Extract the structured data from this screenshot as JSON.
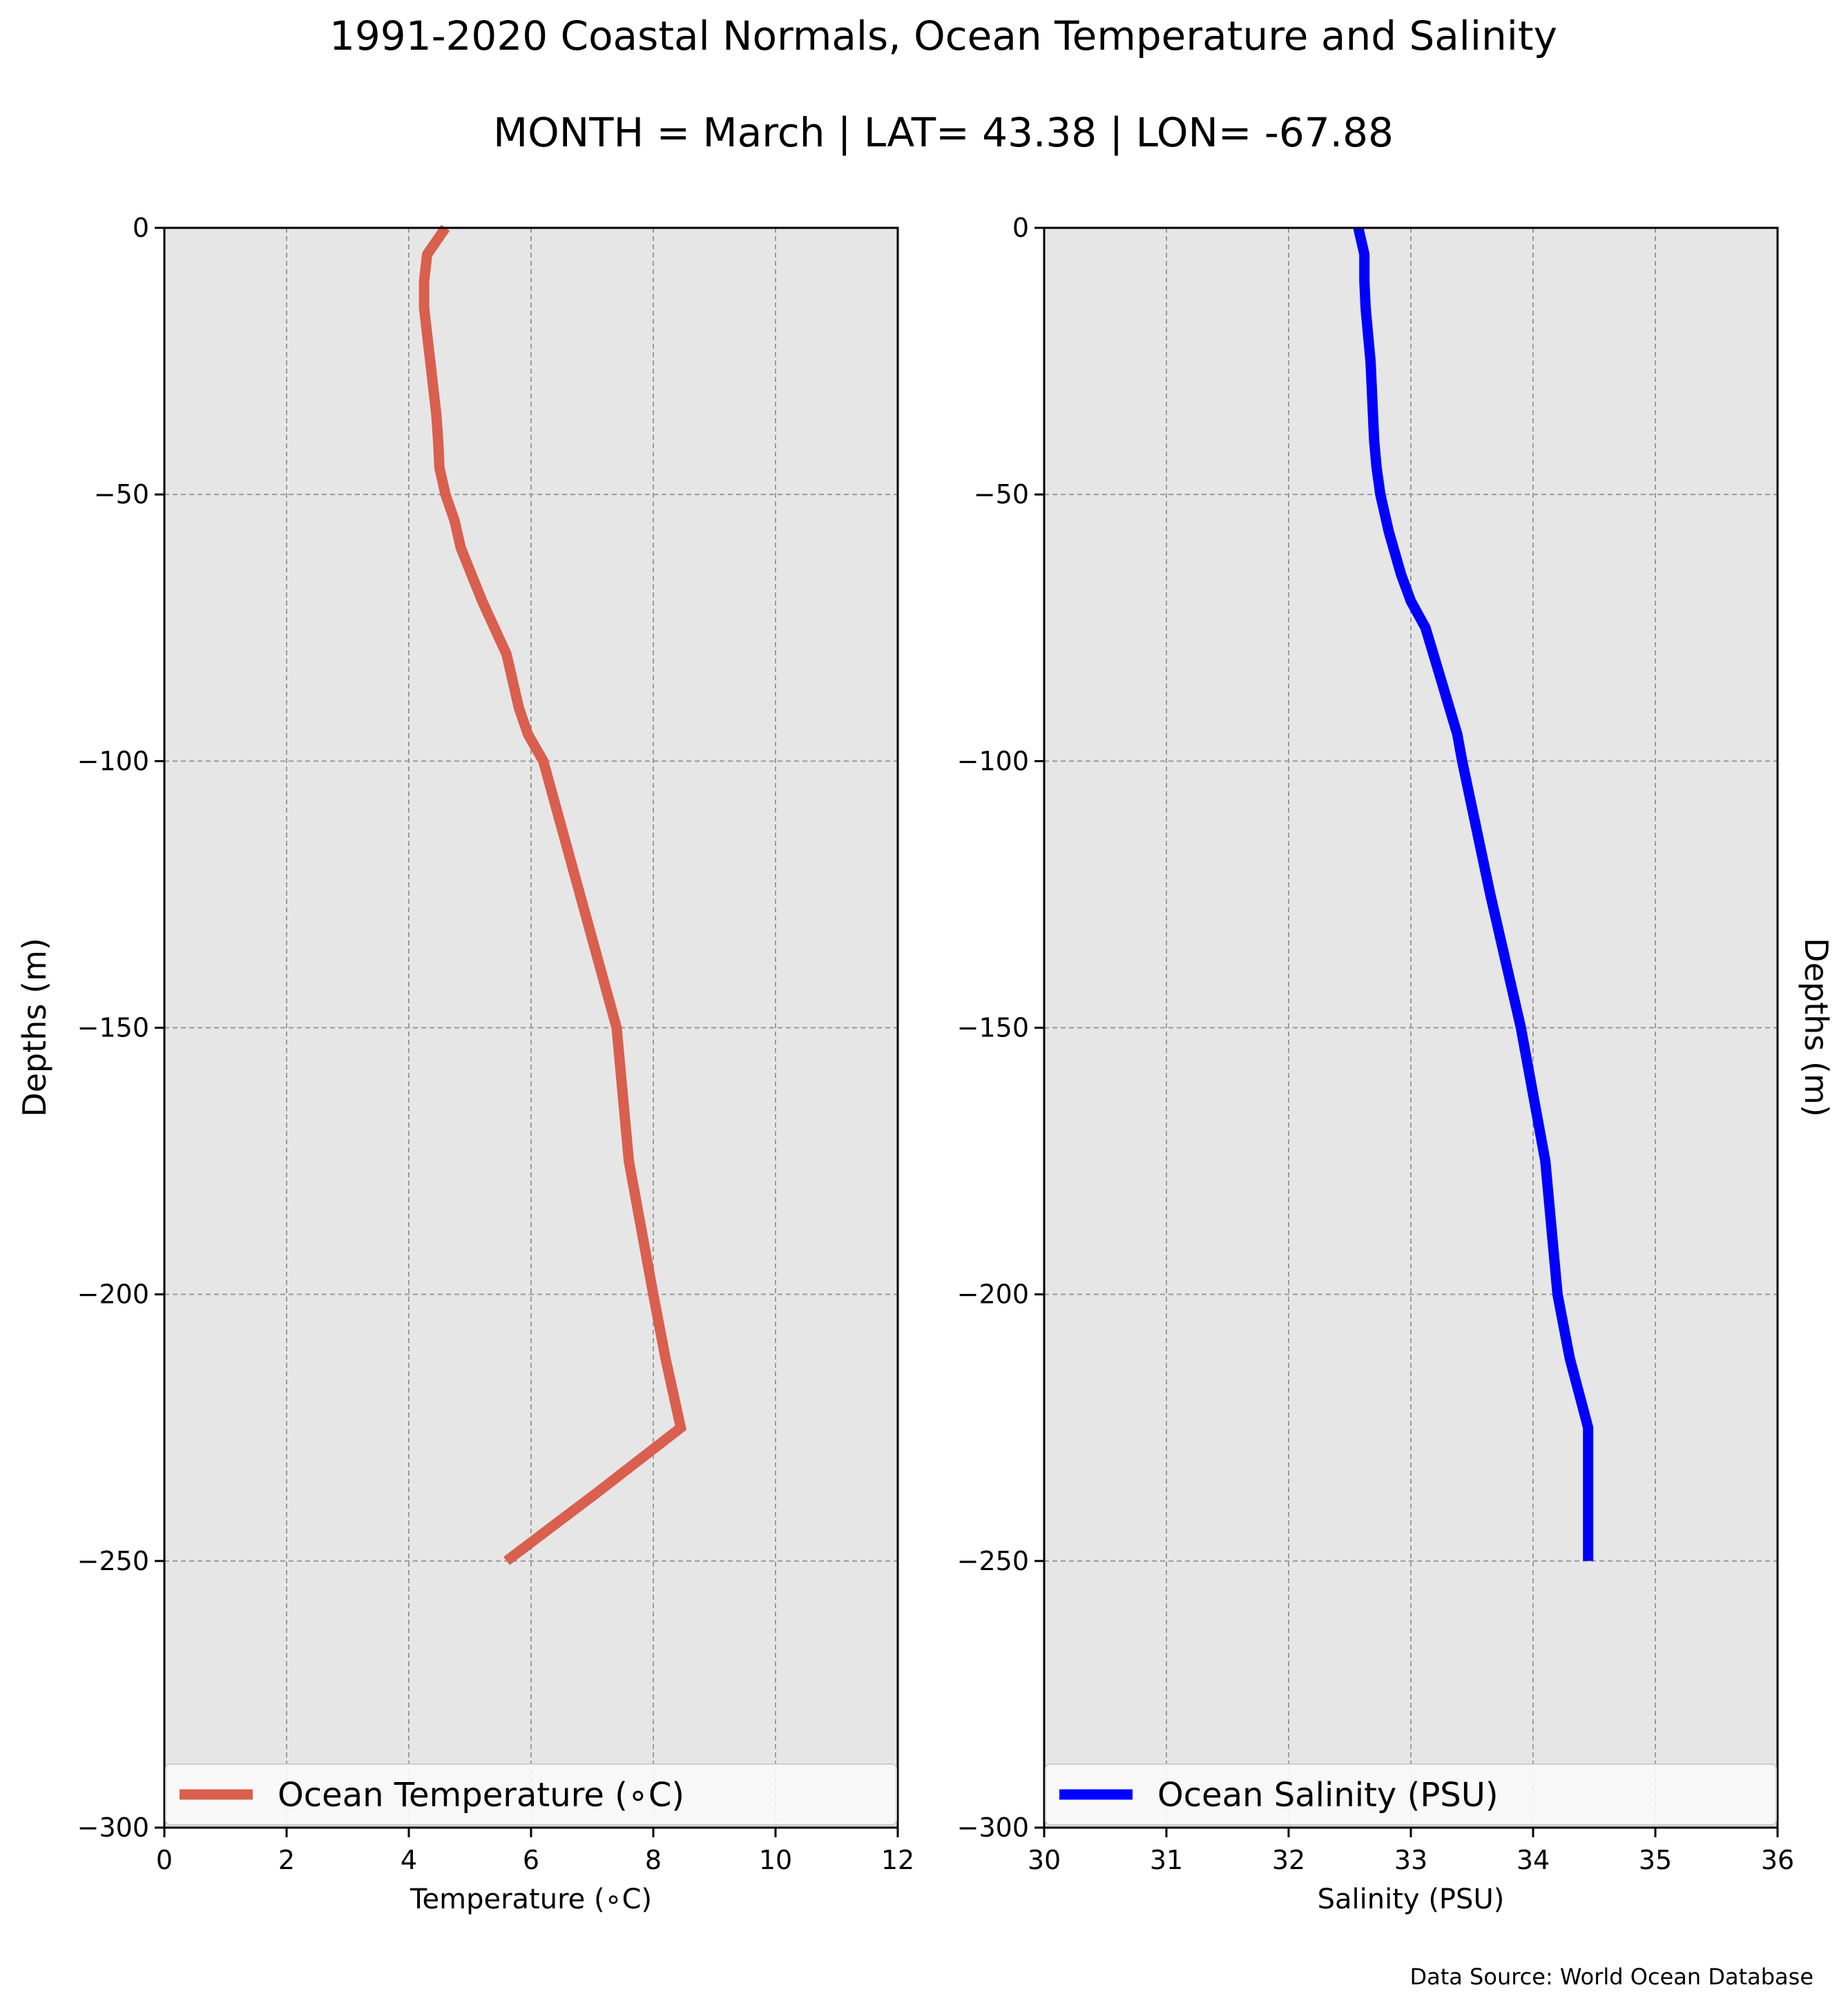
{
  "figure": {
    "title_line1": "1991-2020 Coastal Normals, Ocean Temperature and Salinity",
    "title_line2": "MONTH = March | LAT= 43.38 | LON= -67.88",
    "source": "Data Source: World Ocean Database"
  },
  "chart_data": [
    {
      "type": "line",
      "xlabel": "Temperature (∘C)",
      "ylabel": "Depths (m)",
      "xlim": [
        0,
        12
      ],
      "ylim": [
        -300,
        0
      ],
      "x_ticks": [
        0,
        2,
        4,
        6,
        8,
        10,
        12
      ],
      "y_ticks": [
        0,
        -50,
        -100,
        -150,
        -200,
        -250,
        -300
      ],
      "x_tick_labels": [
        "0",
        "2",
        "4",
        "6",
        "8",
        "10",
        "12"
      ],
      "y_tick_labels": [
        "0",
        "−50",
        "−100",
        "−150",
        "−200",
        "−250",
        "−300"
      ],
      "grid": true,
      "legend_position": "lower center",
      "series": [
        {
          "name": "Ocean Temperature (∘C)",
          "color": "#d95f4e",
          "x": [
            4.6,
            4.3,
            4.25,
            4.25,
            4.3,
            4.35,
            4.4,
            4.45,
            4.48,
            4.5,
            4.6,
            4.75,
            4.85,
            5.2,
            5.6,
            5.8,
            5.95,
            6.2,
            6.8,
            7.4,
            7.6,
            8.0,
            8.2,
            8.45,
            7.1,
            5.6
          ],
          "y": [
            0,
            -5,
            -10,
            -15,
            -20,
            -25,
            -30,
            -35,
            -40,
            -45,
            -50,
            -55,
            -60,
            -70,
            -80,
            -90,
            -95,
            -100,
            -125,
            -150,
            -175,
            -200,
            -212,
            -225,
            -237,
            -250
          ]
        }
      ]
    },
    {
      "type": "line",
      "xlabel": "Salinity (PSU)",
      "ylabel": "Depths (m)",
      "xlim": [
        30,
        36
      ],
      "ylim": [
        -300,
        0
      ],
      "x_ticks": [
        30,
        31,
        32,
        33,
        34,
        35,
        36
      ],
      "y_ticks": [
        0,
        -50,
        -100,
        -150,
        -200,
        -250,
        -300
      ],
      "x_tick_labels": [
        "30",
        "31",
        "32",
        "33",
        "34",
        "35",
        "36"
      ],
      "y_tick_labels": [
        "0",
        "−50",
        "−100",
        "−150",
        "−200",
        "−250",
        "−300"
      ],
      "grid": true,
      "legend_position": "lower center",
      "series": [
        {
          "name": "Ocean Salinity (PSU)",
          "color": "#0000ff",
          "x": [
            32.57,
            32.62,
            32.62,
            32.63,
            32.65,
            32.67,
            32.68,
            32.69,
            32.7,
            32.72,
            32.75,
            32.82,
            32.92,
            33.0,
            33.12,
            33.25,
            33.38,
            33.42,
            33.65,
            33.9,
            34.1,
            34.2,
            34.3,
            34.45,
            34.45,
            34.45
          ],
          "y": [
            0,
            -5,
            -10,
            -15,
            -20,
            -25,
            -30,
            -35,
            -40,
            -45,
            -50,
            -57,
            -65,
            -70,
            -75,
            -85,
            -95,
            -100,
            -125,
            -150,
            -175,
            -200,
            -212,
            -225,
            -237,
            -250
          ]
        }
      ]
    }
  ]
}
